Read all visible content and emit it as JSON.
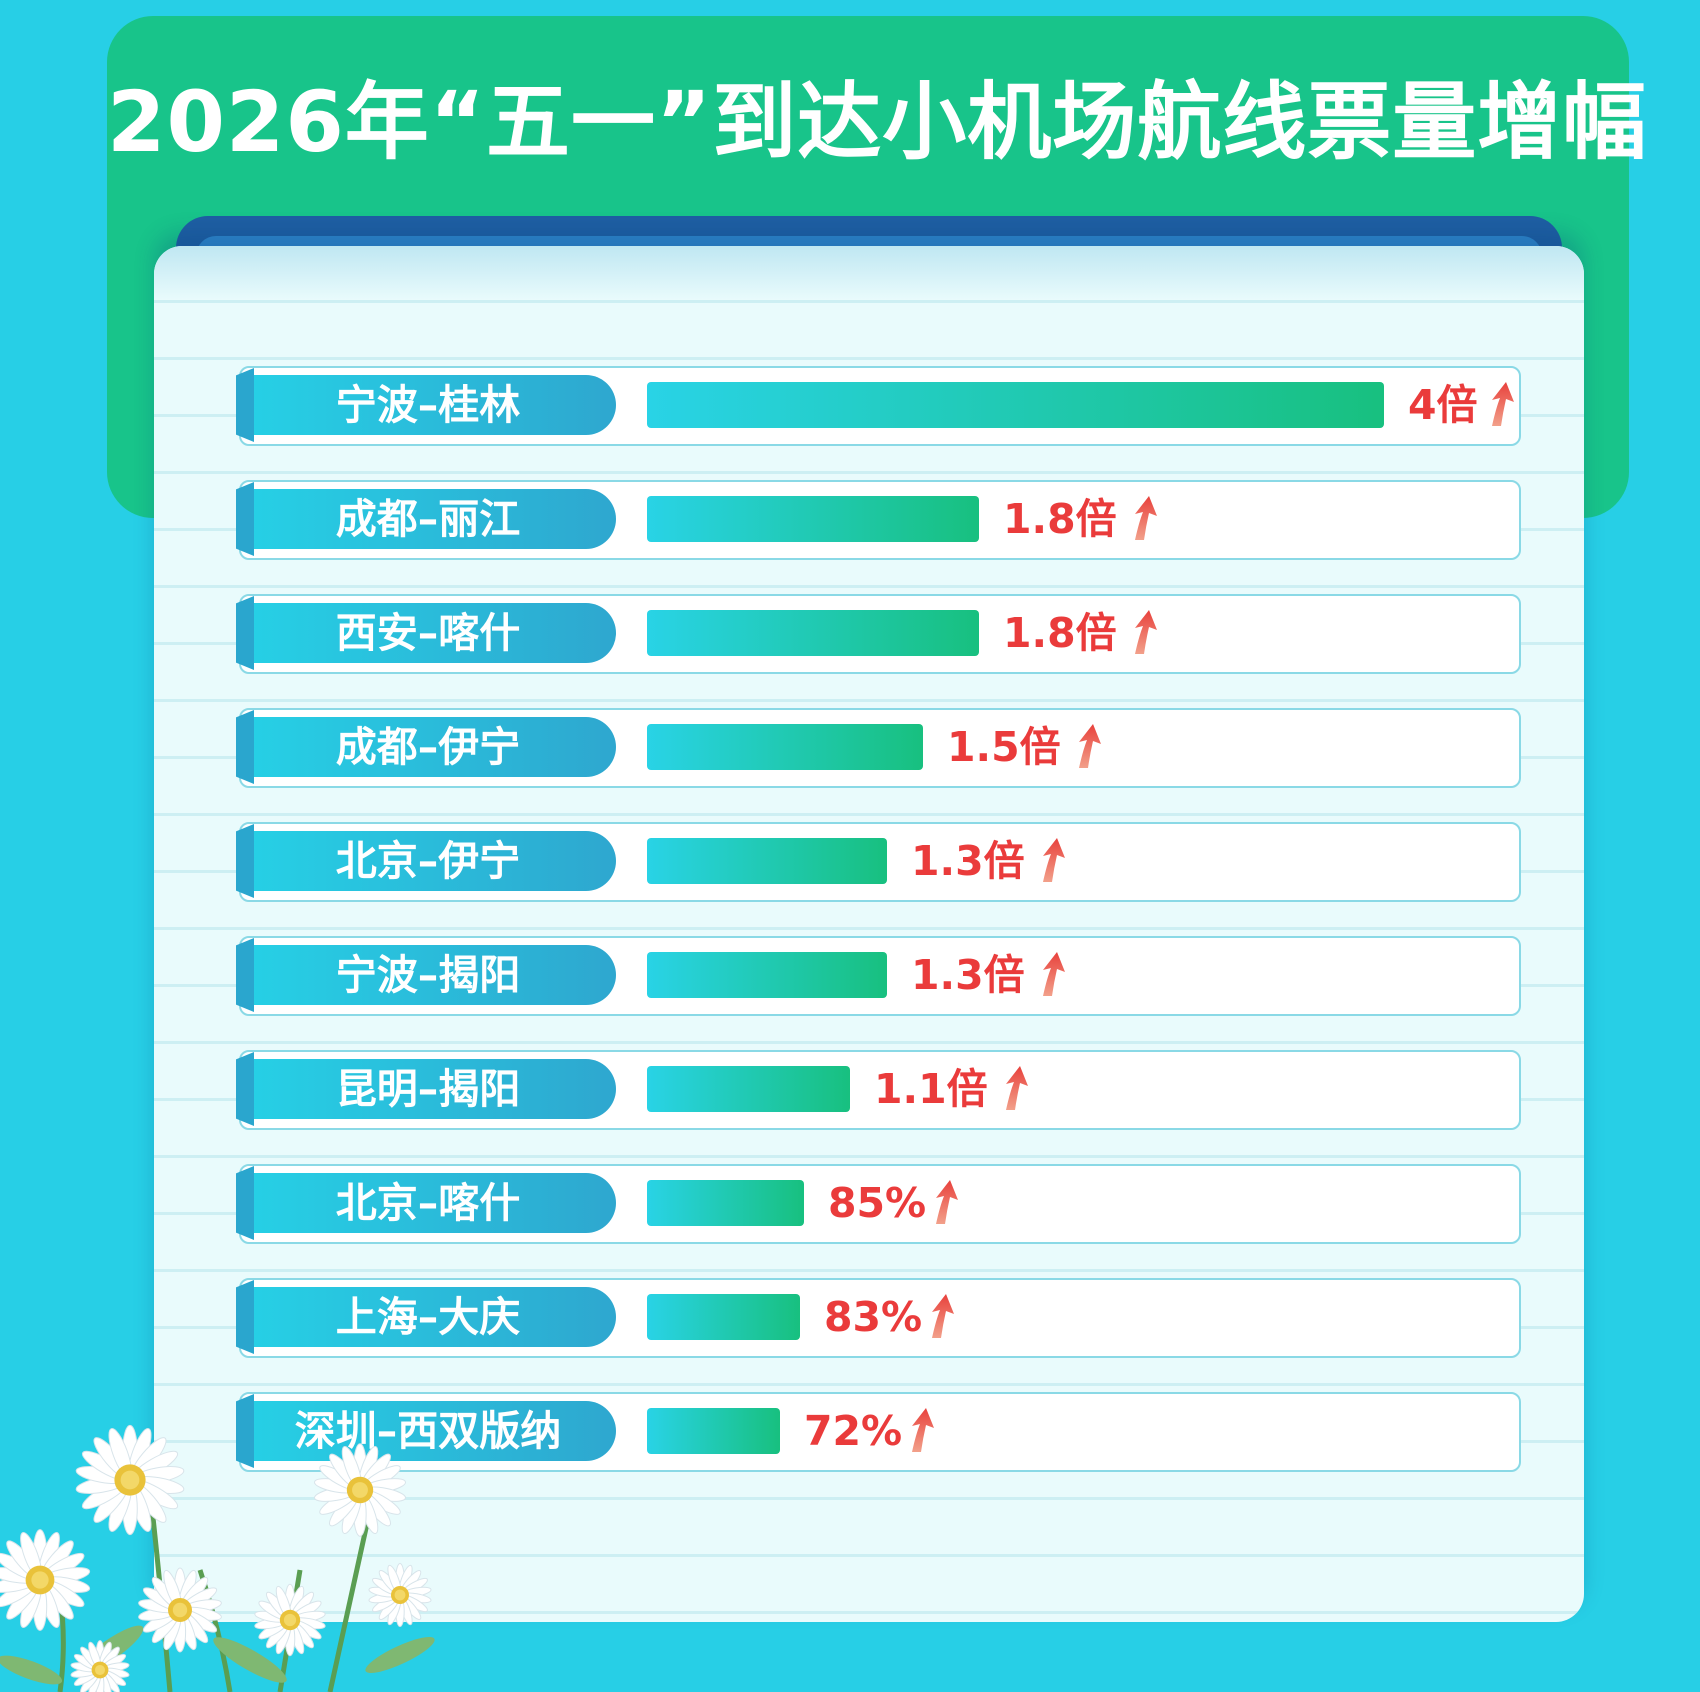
{
  "title": "2026年“五一”到达小机场航线票量增幅",
  "colors": {
    "background": "#27cfe6",
    "header": "#18c48a",
    "bar_start": "#29d3e6",
    "bar_end": "#18c07f",
    "value_text": "#ea3b3b"
  },
  "chart_data": {
    "type": "bar",
    "orientation": "horizontal",
    "title": "2026年“五一”到达小机场航线票量增幅",
    "xlabel": "",
    "ylabel": "",
    "grid": false,
    "legend": "none",
    "categories": [
      "宁波–桂林",
      "成都–丽江",
      "西安–喀什",
      "成都–伊宁",
      "北京–伊宁",
      "宁波–揭阳",
      "昆明–揭阳",
      "北京–喀什",
      "上海–大庆",
      "深圳–西双版纳"
    ],
    "values": [
      4,
      1.8,
      1.8,
      1.5,
      1.3,
      1.3,
      1.1,
      0.85,
      0.83,
      0.72
    ],
    "value_labels": [
      "4倍",
      "1.8倍",
      "1.8倍",
      "1.5倍",
      "1.3倍",
      "1.3倍",
      "1.1倍",
      "85%",
      "83%",
      "72%"
    ],
    "xlim": [
      0,
      4
    ]
  }
}
